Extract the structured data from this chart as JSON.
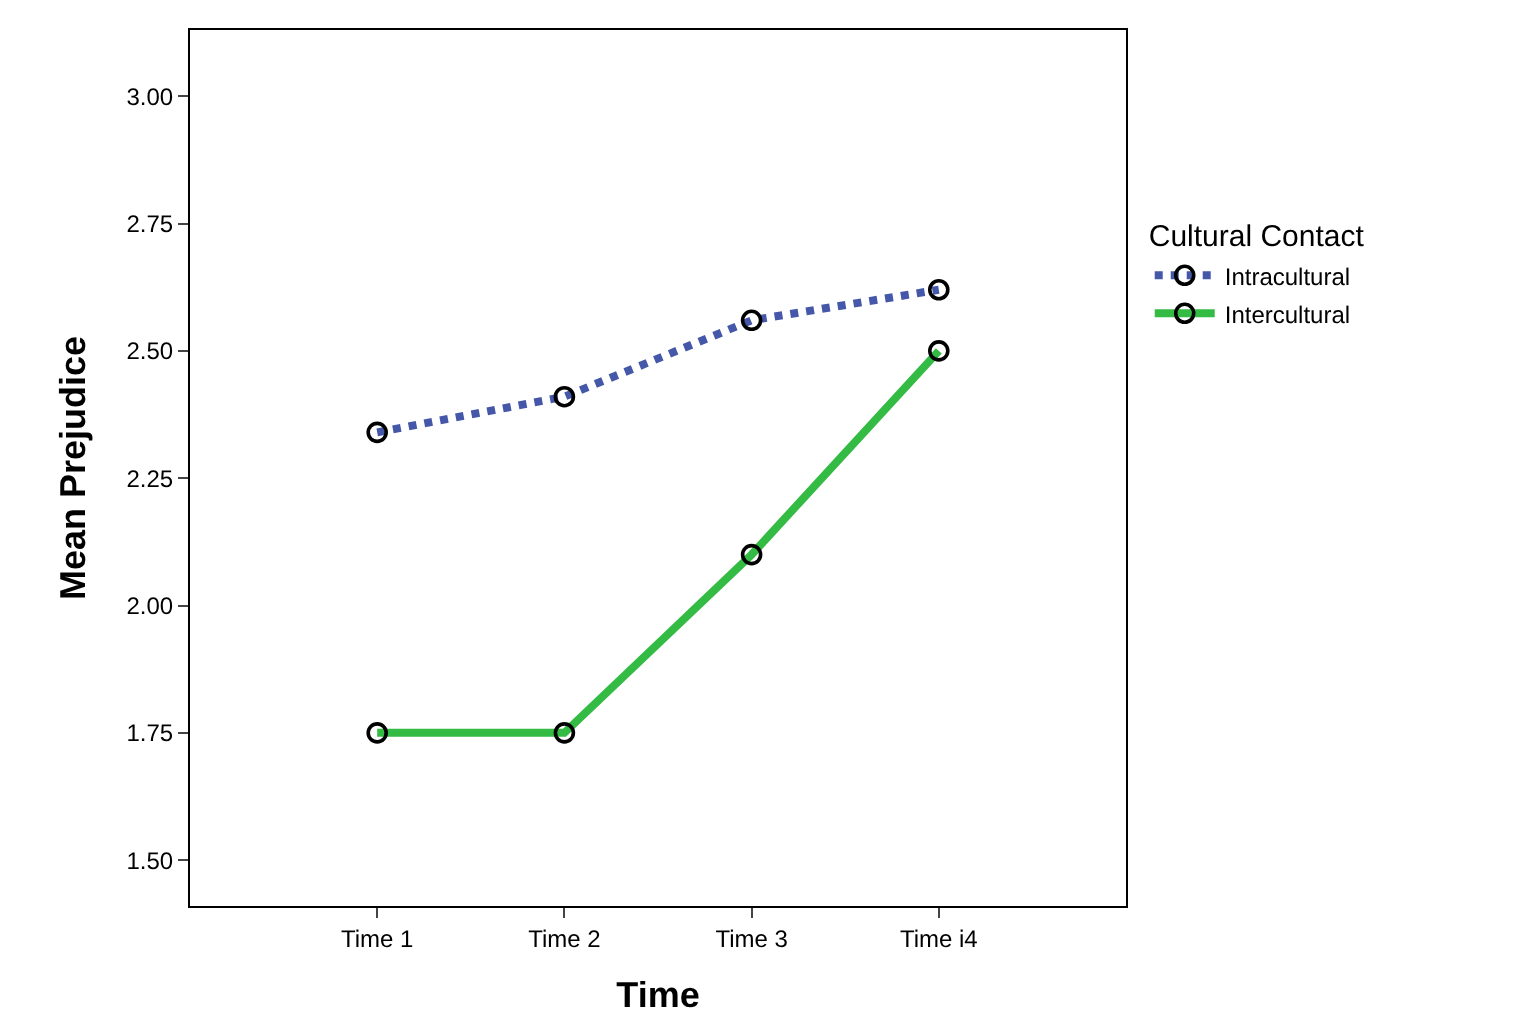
{
  "chart_data": {
    "type": "line",
    "xlabel": "Time",
    "ylabel": "Mean Prejudice",
    "legend_title": "Cultural Contact",
    "categories": [
      "Time 1",
      "Time 2",
      "Time 3",
      "Time i4"
    ],
    "series": [
      {
        "name": "Intracultural",
        "color": "#4457a8",
        "line_style": "dotted",
        "values": [
          2.34,
          2.41,
          2.56,
          2.62
        ]
      },
      {
        "name": "Intercultural",
        "color": "#33bb44",
        "line_style": "solid",
        "values": [
          1.75,
          1.75,
          2.1,
          2.5
        ]
      }
    ],
    "ylim": [
      1.41,
      3.13
    ],
    "yticks": [
      {
        "value": 1.5,
        "label": "1.50"
      },
      {
        "value": 1.75,
        "label": "1.75"
      },
      {
        "value": 2.0,
        "label": "2.00"
      },
      {
        "value": 2.25,
        "label": "2.25"
      },
      {
        "value": 2.5,
        "label": "2.50"
      },
      {
        "value": 2.75,
        "label": "2.75"
      },
      {
        "value": 3.0,
        "label": "3.00"
      }
    ],
    "marker": "circle",
    "legend": "right"
  }
}
